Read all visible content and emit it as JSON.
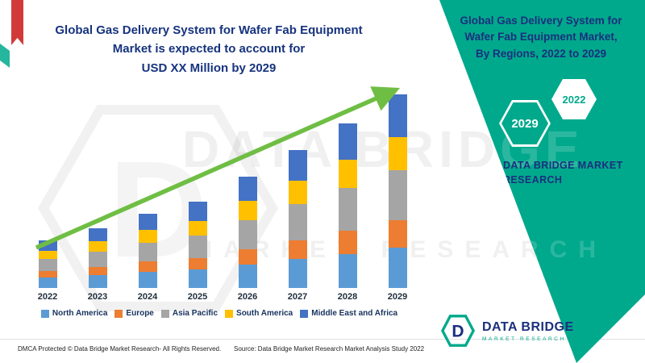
{
  "chart": {
    "title_lines": [
      "Global Gas Delivery System for Wafer Fab Equipment",
      "Market is expected to account for",
      "USD XX Million by 2029"
    ]
  },
  "chart_data": {
    "type": "bar",
    "stacked": true,
    "title": "Global Gas Delivery System for Wafer Fab Equipment Market is expected to account for USD XX Million by 2029",
    "categories": [
      "2022",
      "2023",
      "2024",
      "2025",
      "2026",
      "2027",
      "2028",
      "2029"
    ],
    "series": [
      {
        "name": "North America",
        "color": "#5B9BD5",
        "values": [
          13,
          16,
          20,
          23,
          29,
          36,
          43,
          51
        ]
      },
      {
        "name": "Europe",
        "color": "#ED7D31",
        "values": [
          8,
          10,
          13,
          15,
          20,
          24,
          29,
          34
        ]
      },
      {
        "name": "Asia Pacific",
        "color": "#A5A5A5",
        "values": [
          16,
          20,
          24,
          28,
          36,
          45,
          54,
          63
        ]
      },
      {
        "name": "South America",
        "color": "#FFC000",
        "values": [
          10,
          13,
          16,
          18,
          24,
          30,
          35,
          41
        ]
      },
      {
        "name": "Middle East and Africa",
        "color": "#4472C4",
        "values": [
          13,
          16,
          20,
          24,
          31,
          38,
          46,
          54
        ]
      }
    ],
    "values_note": "relative bar heights; actual figures shown only as USD XX Million",
    "legend_position": "bottom",
    "trend_arrow": true,
    "trend_arrow_color": "#6fbe44"
  },
  "side_panel": {
    "title_lines": [
      "Global Gas Delivery System for",
      "Wafer Fab Equipment Market,",
      "By Regions, 2022 to 2029"
    ],
    "hexagon_years": [
      "2029",
      "2022"
    ],
    "brand_line1": "DATA BRIDGE MARKET",
    "brand_line2": "RESEARCH",
    "background_color": "#00a98c",
    "text_color": "#1b2f7e"
  },
  "watermark": {
    "line1": "DATA BRIDGE",
    "line2": "MARKET RESEARCH",
    "letter": "D"
  },
  "logo": {
    "title": "DATA BRIDGE",
    "subtitle": "MARKET RESEARCH"
  },
  "footer": {
    "dmca": "DMCA Protected © Data Bridge Market Research- All Rights Reserved.",
    "source": "Source: Data Bridge Market Research Market Analysis Study 2022"
  }
}
